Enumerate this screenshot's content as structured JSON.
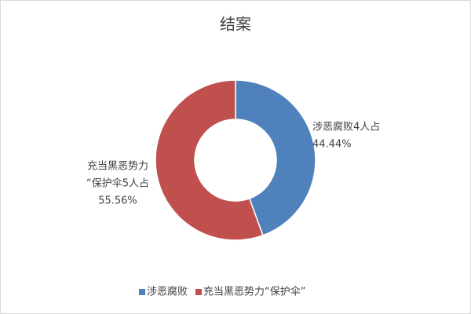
{
  "chart_data": {
    "type": "donut",
    "title": "结案",
    "categories": [
      "涉恶腐败",
      "充当黑恶势力“保护伞”"
    ],
    "values": [
      44.44,
      55.56
    ],
    "value_labels": [
      [
        "涉恶腐败4人占",
        "44.44%"
      ],
      [
        "充当黑恶势力",
        "“保护伞5人占",
        "55.56%"
      ]
    ],
    "colors": [
      "#4f81bd",
      "#c0504d"
    ],
    "legend": "bottom"
  }
}
